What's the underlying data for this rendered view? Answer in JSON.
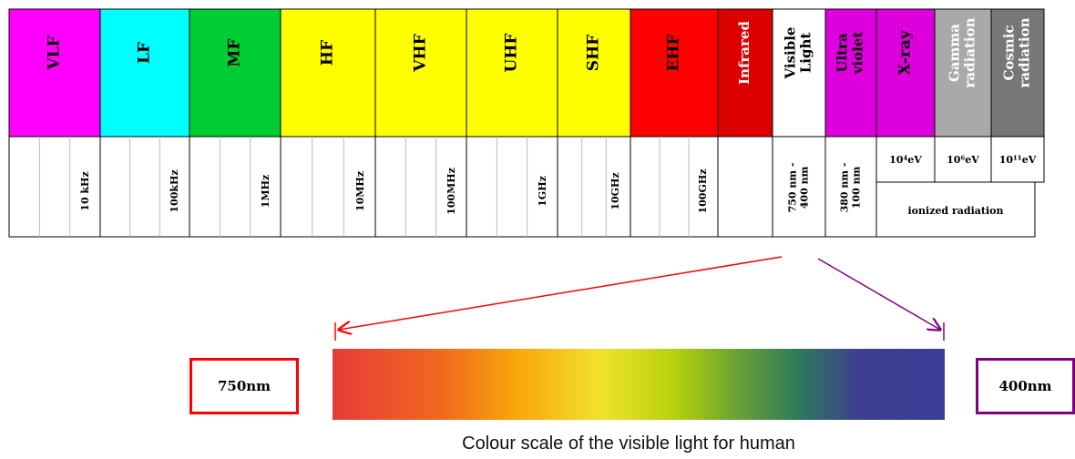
{
  "bands": [
    {
      "label": "VLF",
      "color": "#ff00ff",
      "freq": "10 kHz"
    },
    {
      "label": "LF",
      "color": "#00ffff",
      "freq": "100kHz"
    },
    {
      "label": "MF",
      "color": "#00cc33",
      "freq": "1MHz"
    },
    {
      "label": "HF",
      "color": "#ffff00",
      "freq": "10MHz"
    },
    {
      "label": "VHF",
      "color": "#ffff00",
      "freq": "100MHz"
    },
    {
      "label": "UHF",
      "color": "#ffff00",
      "freq": "1GHz"
    },
    {
      "label": "SHF",
      "color": "#ffff00",
      "freq": "10GHz"
    },
    {
      "label": "EHF",
      "color": "#ff0000",
      "freq": "100GHz"
    },
    {
      "label": "Infrared",
      "color": "#dd0000",
      "text_color": "#ffffff",
      "freq": ""
    },
    {
      "label": "Visible Light",
      "color": "#ffffff",
      "freq": "750 nm - 400 nm"
    },
    {
      "label": "Ultra violet",
      "color": "#dd00dd",
      "freq": "380 nm - 100 nm"
    },
    {
      "label": "X-ray",
      "color": "#dd00dd",
      "freq": "10⁴eV"
    },
    {
      "label": "Gamma radiation",
      "color": "#a9a9a9",
      "text_color": "#ffffff",
      "freq": "10⁶eV"
    },
    {
      "label": "Cosmic radiation",
      "color": "#777777",
      "text_color": "#ffffff",
      "freq": "10¹¹eV"
    }
  ],
  "ionised_label": "ionized radiation",
  "spectrum": {
    "left_box": "750nm",
    "right_box": "400nm",
    "left_color": "#ff0000",
    "right_color": "#800080",
    "caption": "Colour scale of the visible light for human"
  }
}
